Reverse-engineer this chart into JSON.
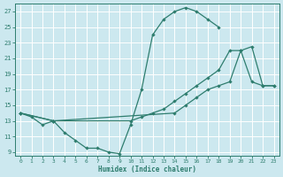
{
  "xlabel": "Humidex (Indice chaleur)",
  "bg_color": "#cce8ef",
  "line_color": "#2e7d6e",
  "grid_color": "#ffffff",
  "xlim": [
    -0.5,
    23.5
  ],
  "ylim": [
    8.5,
    28.0
  ],
  "xticks": [
    0,
    1,
    2,
    3,
    4,
    5,
    6,
    7,
    8,
    9,
    10,
    11,
    12,
    13,
    14,
    15,
    16,
    17,
    18,
    19,
    20,
    21,
    22,
    23
  ],
  "yticks": [
    9,
    11,
    13,
    15,
    17,
    19,
    21,
    23,
    25,
    27
  ],
  "curve1_x": [
    0,
    1,
    2,
    3,
    4,
    5,
    6,
    7,
    8,
    9,
    10,
    11,
    12,
    13,
    14,
    15,
    16,
    17,
    18
  ],
  "curve1_y": [
    14,
    13.5,
    12.5,
    13,
    11.5,
    10.5,
    9.5,
    9.5,
    9,
    8.8,
    12.5,
    17,
    24,
    26,
    27,
    27.5,
    27,
    26,
    25
  ],
  "curve2_x": [
    0,
    3,
    10,
    11,
    12,
    13,
    14,
    15,
    16,
    17,
    18,
    19,
    20,
    21,
    22,
    23
  ],
  "curve2_y": [
    14,
    13,
    13,
    13.5,
    14,
    14.5,
    15.5,
    16.5,
    17.5,
    18.5,
    19.5,
    22,
    22,
    18,
    17.5,
    17.5
  ],
  "curve3_x": [
    0,
    3,
    14,
    15,
    16,
    17,
    18,
    19,
    20,
    21,
    22,
    23
  ],
  "curve3_y": [
    14,
    13,
    14,
    15,
    16,
    17,
    17.5,
    18,
    22,
    22.5,
    17.5,
    17.5
  ]
}
